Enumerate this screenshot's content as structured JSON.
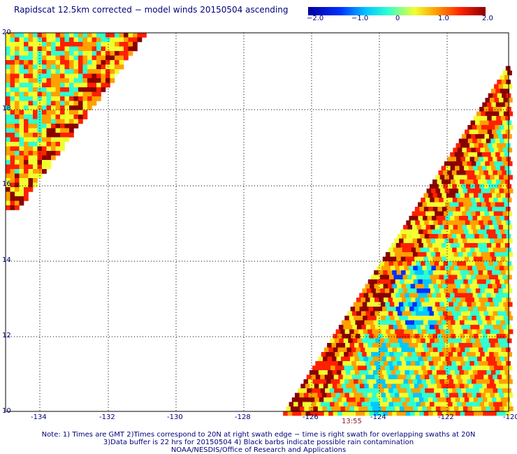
{
  "title": "Rapidscat 12.5km corrected − model winds 20150504 ascending",
  "colorbar": {
    "labels": [
      "−2.0",
      "−1.0",
      "0",
      "1.0",
      "2.0"
    ],
    "colors": [
      "#00009a",
      "#0030ff",
      "#00c8ff",
      "#30ffd0",
      "#f0ff30",
      "#ffa000",
      "#ff2000",
      "#8a0000"
    ]
  },
  "axes": {
    "x_ticks": [
      "-134",
      "-132",
      "-130",
      "-128",
      "-126",
      "-124",
      "-122",
      "-120"
    ],
    "y_ticks": [
      "20",
      "18",
      "16",
      "14",
      "12",
      "10"
    ]
  },
  "pass_time": "13:55",
  "notes": {
    "line1": "Note: 1) Times are GMT 2)Times correspond to 20N at right swath edge − time is right swath for overlapping swaths at 20N",
    "line2": "3)Data buffer is 22 hrs for 20150504 4) Black barbs indicate possible rain contamination",
    "line3": "NOAA/NESDIS/Office of Research and Applications"
  }
}
